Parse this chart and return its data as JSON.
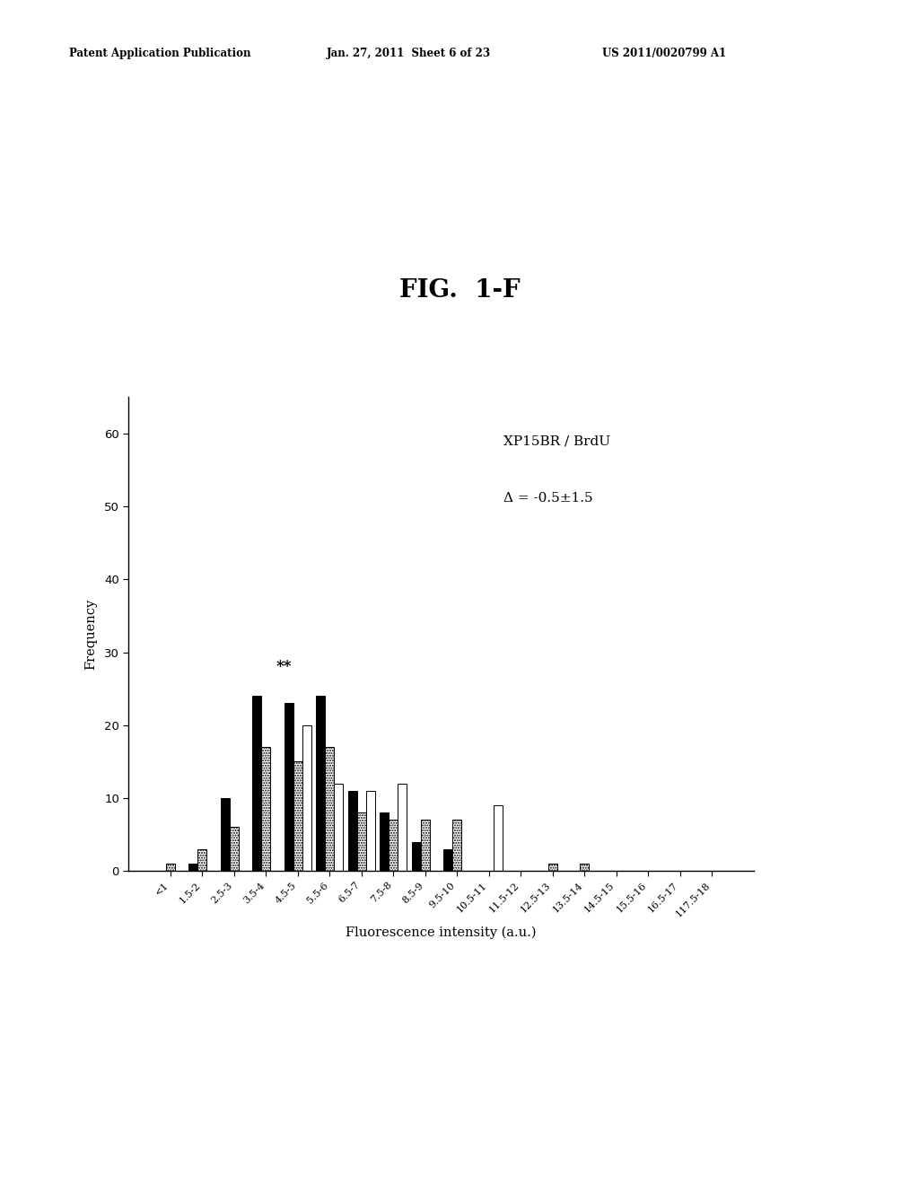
{
  "title": "FIG.  1-F",
  "header_left": "Patent Application Publication",
  "header_mid": "Jan. 27, 2011  Sheet 6 of 23",
  "header_right": "US 2011/0020799 A1",
  "annotation_line1": "XP15BR / BrdU",
  "annotation_line2": "Δ = -0.5±1.5",
  "annotation_marker": "**",
  "xlabel": "Fluorescence intensity (a.u.)",
  "ylabel": "Frequency",
  "ylim": [
    0,
    65
  ],
  "yticks": [
    0,
    10,
    20,
    30,
    40,
    50,
    60
  ],
  "categories": [
    "<1",
    "1.5-2",
    "2.5-3",
    "3.5-4",
    "4.5-5",
    "5.5-6",
    "6.5-7",
    "7.5-8",
    "8.5-9",
    "9.5-10",
    "10.5-11",
    "11.5-12",
    "12.5-13",
    "13.5-14",
    "14.5-15",
    "15.5-16",
    "16.5-17",
    "117.5-18"
  ],
  "black_values": [
    0,
    1,
    10,
    24,
    23,
    24,
    11,
    8,
    4,
    3,
    0,
    0,
    0,
    0,
    0,
    0,
    0,
    0
  ],
  "dotted_values": [
    1,
    3,
    6,
    17,
    15,
    17,
    8,
    7,
    7,
    7,
    0,
    0,
    1,
    1,
    0,
    0,
    0,
    0
  ],
  "white_values": [
    0,
    0,
    0,
    0,
    20,
    12,
    11,
    12,
    0,
    0,
    9,
    0,
    0,
    0,
    0,
    0,
    0,
    0
  ],
  "background_color": "#ffffff",
  "bar_width": 0.28
}
